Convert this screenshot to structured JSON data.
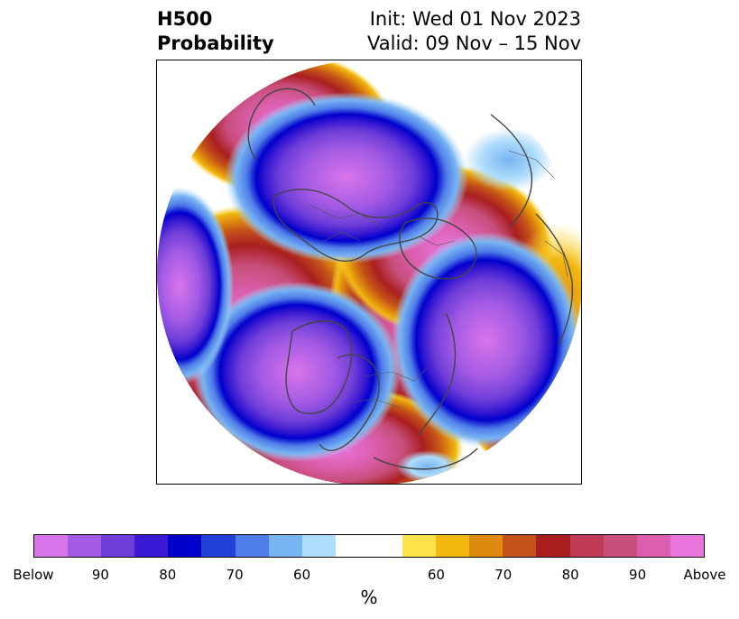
{
  "title": {
    "left_line1": "H500",
    "left_line2": "Probability",
    "right_line1": "Init: Wed 01 Nov 2023",
    "right_line2": "Valid: 09 Nov – 15 Nov"
  },
  "map": {
    "projection": "polar-stereographic",
    "content": "500 hPa height anomaly probability"
  },
  "colorbar": {
    "colors": [
      "#d975ea",
      "#a35ae4",
      "#6f3ed8",
      "#3a1ad2",
      "#0000cc",
      "#2040d8",
      "#4e7ce8",
      "#78b4f2",
      "#aedcfb",
      "#ffffff",
      "#ffffff",
      "#fde24c",
      "#f2b810",
      "#de8a0e",
      "#c35218",
      "#a91f20",
      "#bf3a55",
      "#c84e7c",
      "#db5fae",
      "#ea76dd"
    ],
    "labels": [
      "Below",
      "90",
      "80",
      "70",
      "60",
      "60",
      "70",
      "80",
      "90",
      "Above"
    ],
    "unit": "%"
  }
}
